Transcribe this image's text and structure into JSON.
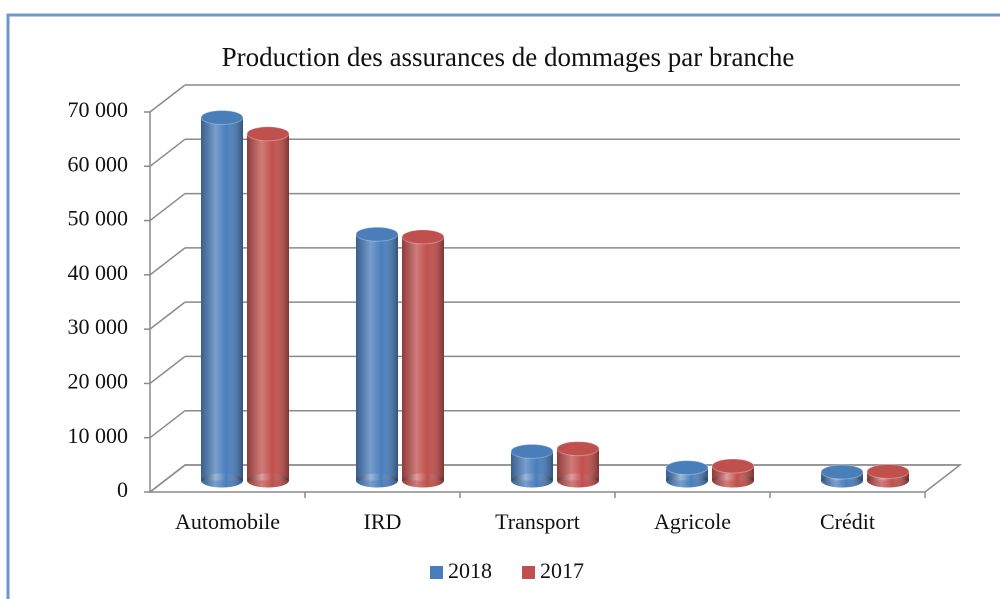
{
  "chart_data": {
    "type": "bar3d",
    "title": "Production des assurances de dommages par branche",
    "categories": [
      "Automobile",
      "IRD",
      "Transport",
      "Agricole",
      "Crédit"
    ],
    "series": [
      {
        "name": "2018",
        "color": "#4a7ebb",
        "values": [
          66500,
          45000,
          5000,
          2000,
          1200
        ]
      },
      {
        "name": "2017",
        "color": "#c0504d",
        "values": [
          63500,
          44500,
          5500,
          2300,
          1300
        ]
      }
    ],
    "ylim": [
      0,
      70000
    ],
    "yticks": [
      0,
      {
        "value": 10000,
        "label": "10 000"
      },
      {
        "value": 20000,
        "label": "20 000"
      },
      {
        "value": 30000,
        "label": "30 000"
      },
      {
        "value": 40000,
        "label": "40 000"
      },
      {
        "value": 50000,
        "label": "50 000"
      },
      {
        "value": 60000,
        "label": "60 000"
      },
      {
        "value": 70000,
        "label": "70 000"
      }
    ],
    "grid": true,
    "legend": "bottom"
  }
}
